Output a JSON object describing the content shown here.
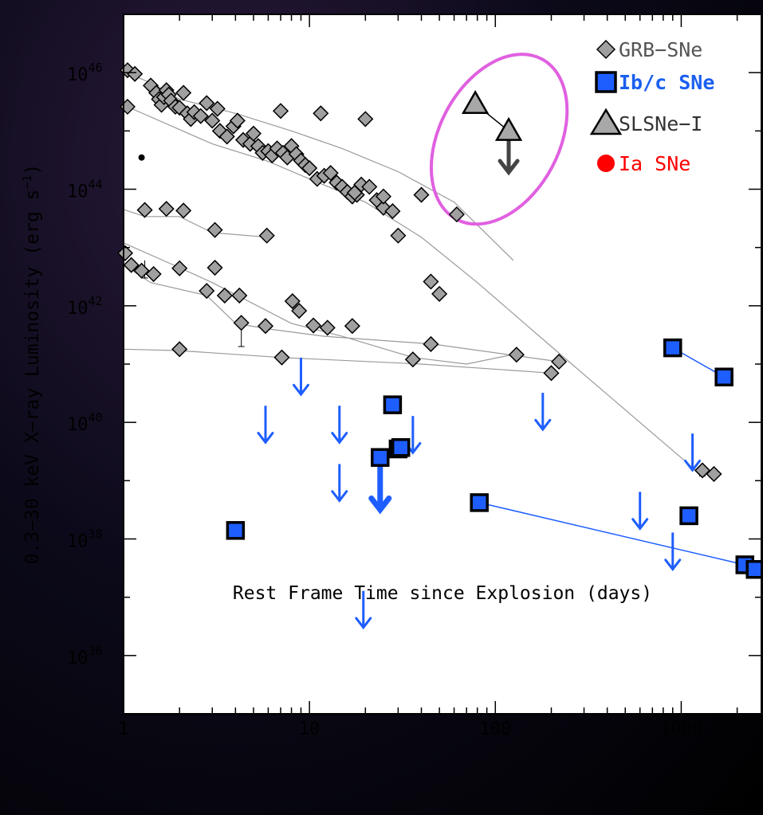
{
  "chart_data": {
    "type": "scatter",
    "x_scale": "log",
    "y_scale": "log",
    "xlabel": "Rest Frame Time since Explosion (days)",
    "ylabel_prefix": "0.3−30 keV X−ray Luminosity (erg s",
    "ylabel_exponent": "−1",
    "ylabel_suffix": ")",
    "xlim": [
      1,
      2700
    ],
    "ylim": [
      1e+35,
      1e+47
    ],
    "x_ticks": [
      {
        "value": 1,
        "label": "1"
      },
      {
        "value": 10,
        "label": "10"
      },
      {
        "value": 100,
        "label": "100"
      },
      {
        "value": 1000,
        "label": "1000"
      }
    ],
    "y_ticks": [
      {
        "value": 1e+36,
        "base": "10",
        "exp": "36"
      },
      {
        "value": 1e+38,
        "base": "10",
        "exp": "38"
      },
      {
        "value": 1e+40,
        "base": "10",
        "exp": "40"
      },
      {
        "value": 1e+42,
        "base": "10",
        "exp": "42"
      },
      {
        "value": 1e+44,
        "base": "10",
        "exp": "44"
      },
      {
        "value": 1e+46,
        "base": "10",
        "exp": "46"
      }
    ],
    "legend_position": "top-right",
    "legend": [
      {
        "label": "GRB−SNe",
        "marker": "diamond",
        "color": "#555555"
      },
      {
        "label": "Ib/c SNe",
        "marker": "square",
        "color": "#1a5ff0"
      },
      {
        "label": "SLSNe−I",
        "marker": "triangle",
        "color": "#333333"
      },
      {
        "label": "Ia SNe",
        "marker": "circle",
        "color": "#ff0000"
      }
    ],
    "colors": {
      "grb": "#a0a0a0",
      "ibc": "#1e5eff",
      "slsn": "#a8a8a8",
      "ia_point": "#000000",
      "ellipse": "#e060e0",
      "line_grb": "#9a9a9a",
      "line_ibc": "#1e5eff"
    },
    "grb_lines": [
      [
        [
          1.05,
          1e+46
        ],
        [
          1.5,
          6e+45
        ],
        [
          2,
          3.5e+45
        ],
        [
          4,
          2e+45
        ],
        [
          8,
          1e+45
        ],
        [
          15,
          5e+44
        ],
        [
          30,
          2e+44
        ],
        [
          60,
          6e+43
        ],
        [
          125,
          6e+42
        ]
      ],
      [
        [
          1.05,
          2.6e+45
        ],
        [
          3,
          6e+44
        ],
        [
          6,
          3e+44
        ],
        [
          10,
          1.5e+44
        ],
        [
          20,
          6e+43
        ],
        [
          40,
          1.5e+43
        ],
        [
          80,
          2.5e+42
        ],
        [
          200,
          2e+41
        ],
        [
          1200,
          1.5e+39
        ]
      ],
      [
        [
          1.0,
          4.5e+43
        ],
        [
          1.3,
          3.4e+43
        ],
        [
          2,
          3.4e+43
        ],
        [
          3,
          1.8e+43
        ],
        [
          6,
          1.5e+43
        ]
      ],
      [
        [
          1.0,
          1.2e+43
        ],
        [
          2,
          4.5e+42
        ],
        [
          3,
          2.5e+42
        ],
        [
          8,
          5e+41
        ],
        [
          15,
          3e+41
        ],
        [
          36,
          1.3e+41
        ],
        [
          70,
          1e+41
        ],
        [
          130,
          1.5e+41
        ]
      ],
      [
        [
          1.0,
          5e+42
        ],
        [
          1.4,
          2.5e+42
        ],
        [
          2.8,
          1.5e+42
        ],
        [
          4,
          5e+41
        ],
        [
          6,
          4e+41
        ],
        [
          12,
          3e+41
        ],
        [
          46,
          2.2e+41
        ],
        [
          220,
          1.1e+41
        ]
      ],
      [
        [
          1.0,
          1.8e+41
        ],
        [
          2,
          1.7e+41
        ],
        [
          7,
          1.3e+41
        ],
        [
          40,
          1e+41
        ],
        [
          200,
          7e+40
        ]
      ]
    ],
    "grb_points": [
      [
        1.05,
        1.1e+46
      ],
      [
        1.15,
        9.5e+45
      ],
      [
        1.4,
        6e+45
      ],
      [
        1.5,
        4.5e+45
      ],
      [
        1.55,
        3.5e+45
      ],
      [
        1.6,
        2.8e+45
      ],
      [
        1.65,
        3.8e+45
      ],
      [
        1.7,
        5e+45
      ],
      [
        1.75,
        4.2e+45
      ],
      [
        1.8,
        3.3e+45
      ],
      [
        1.9,
        2.6e+45
      ],
      [
        2.0,
        2.5e+45
      ],
      [
        2.1,
        4.5e+45
      ],
      [
        2.2,
        2e+45
      ],
      [
        2.3,
        1.6e+45
      ],
      [
        2.4,
        2.1e+45
      ],
      [
        2.6,
        1.8e+45
      ],
      [
        2.8,
        3e+45
      ],
      [
        3.0,
        1.5e+45
      ],
      [
        3.2,
        2.4e+45
      ],
      [
        3.3,
        1e+45
      ],
      [
        3.6,
        8e+44
      ],
      [
        3.9,
        1.2e+45
      ],
      [
        4.1,
        1.5e+45
      ],
      [
        4.4,
        7e+44
      ],
      [
        4.8,
        6e+44
      ],
      [
        5.0,
        9e+44
      ],
      [
        5.3,
        5.5e+44
      ],
      [
        5.6,
        4.2e+44
      ],
      [
        6.0,
        4.5e+44
      ],
      [
        6.3,
        3.8e+44
      ],
      [
        6.7,
        5e+44
      ],
      [
        7.2,
        4.2e+44
      ],
      [
        7.6,
        3.5e+44
      ],
      [
        8.0,
        5.5e+44
      ],
      [
        8.5,
        4e+44
      ],
      [
        9.0,
        3.1e+44
      ],
      [
        9.5,
        2.6e+44
      ],
      [
        10,
        2.3e+44
      ],
      [
        11,
        1.5e+44
      ],
      [
        12,
        1.7e+44
      ],
      [
        13,
        1.9e+44
      ],
      [
        14,
        1.3e+44
      ],
      [
        15,
        1.1e+44
      ],
      [
        16,
        9e+43
      ],
      [
        17,
        7.5e+43
      ],
      [
        18,
        8e+43
      ],
      [
        19,
        1.2e+44
      ],
      [
        21,
        1.1e+44
      ],
      [
        23,
        6.5e+43
      ],
      [
        25,
        4.8e+43
      ],
      [
        28,
        4.2e+43
      ],
      [
        40,
        8e+43
      ],
      [
        25,
        7.5e+43
      ],
      [
        17.5,
        8.7e+43
      ],
      [
        20,
        1.6e+45
      ],
      [
        11.5,
        2e+45
      ],
      [
        7,
        2.2e+45
      ],
      [
        1.05,
        2.6e+45
      ],
      [
        1.3,
        4.4e+43
      ],
      [
        1.7,
        4.6e+43
      ],
      [
        2.1,
        4.3e+43
      ],
      [
        3.1,
        2e+43
      ],
      [
        5.9,
        1.6e+43
      ],
      [
        1.02,
        8e+42
      ],
      [
        1.1,
        5e+42
      ],
      [
        1.25,
        4e+42
      ],
      [
        1.45,
        3.5e+42
      ],
      [
        2.0,
        4.4e+42
      ],
      [
        3.1,
        4.5e+42
      ],
      [
        2.8,
        1.8e+42
      ],
      [
        3.5,
        1.5e+42
      ],
      [
        4.2,
        1.5e+42
      ],
      [
        4.3,
        5.1e+41
      ],
      [
        5.8,
        4.5e+41
      ],
      [
        8.1,
        1.2e+42
      ],
      [
        8.8,
        8.2e+41
      ],
      [
        10.5,
        4.6e+41
      ],
      [
        12.5,
        4.2e+41
      ],
      [
        17,
        4.5e+41
      ],
      [
        30,
        1.6e+43
      ],
      [
        50,
        1.6e+42
      ],
      [
        45,
        2.2e+41
      ],
      [
        36,
        1.2e+41
      ],
      [
        130,
        1.45e+41
      ],
      [
        220,
        1.1e+41
      ],
      [
        200,
        7e+40
      ],
      [
        1300,
        1.5e+39
      ],
      [
        1500,
        1.3e+39
      ],
      [
        2.0,
        1.8e+41
      ],
      [
        7.1,
        1.3e+41
      ],
      [
        45,
        2.6e+42
      ],
      [
        62,
        3.7e+43
      ]
    ],
    "grb_errorbars": [
      [
        1.3,
        3e+42,
        6e+42
      ],
      [
        4.3,
        2e+41,
        5.1e+41
      ],
      [
        1300,
        1.2e+39,
        1.5e+39
      ]
    ],
    "ia_points": [
      [
        1.25,
        3.5e+44
      ]
    ],
    "slsn_points": [
      [
        78,
        2.9e+45
      ],
      [
        118,
        1e+45
      ]
    ],
    "slsn_upper_limits": [
      [
        118,
        1e+45
      ]
    ],
    "slsn_ellipse": {
      "x_center": 105,
      "y_center": 2e+45,
      "x_min": 50,
      "x_max": 220,
      "y_min": 2e+43,
      "y_max": 2.6e+46
    },
    "ibc_squares": [
      [
        4,
        1.4e+38
      ],
      [
        24,
        2.5e+39
      ],
      [
        28,
        2e+40
      ],
      [
        30,
        3.5e+39
      ],
      [
        31,
        3.7e+39
      ],
      [
        82,
        4.2e+38
      ],
      [
        900,
        1.9e+41
      ],
      [
        1700,
        6e+40
      ],
      [
        1100,
        2.5e+38
      ],
      [
        2200,
        3.6e+37
      ],
      [
        2500,
        3e+37
      ]
    ],
    "ibc_lines": [
      [
        [
          900,
          1.9e+41
        ],
        [
          1700,
          6e+40
        ]
      ],
      [
        [
          82,
          4.2e+38
        ],
        [
          2200,
          3.6e+37
        ],
        [
          2500,
          3e+37
        ]
      ]
    ],
    "ibc_upper_limits": [
      [
        5.8,
        1.5e+40,
        "thin"
      ],
      [
        9.0,
        1e+41,
        "thin"
      ],
      [
        14.5,
        1.5e+40,
        "thin"
      ],
      [
        14.5,
        1.5e+39,
        "thin"
      ],
      [
        19.5,
        1e+37,
        "thin"
      ],
      [
        24,
        2.7e+39,
        "thick"
      ],
      [
        36,
        1e+40,
        "thin"
      ],
      [
        180,
        2.5e+40,
        "thin"
      ],
      [
        600,
        5e+38,
        "thin"
      ],
      [
        900,
        1e+38,
        "thin"
      ],
      [
        1150,
        5e+39,
        "thin"
      ]
    ]
  }
}
